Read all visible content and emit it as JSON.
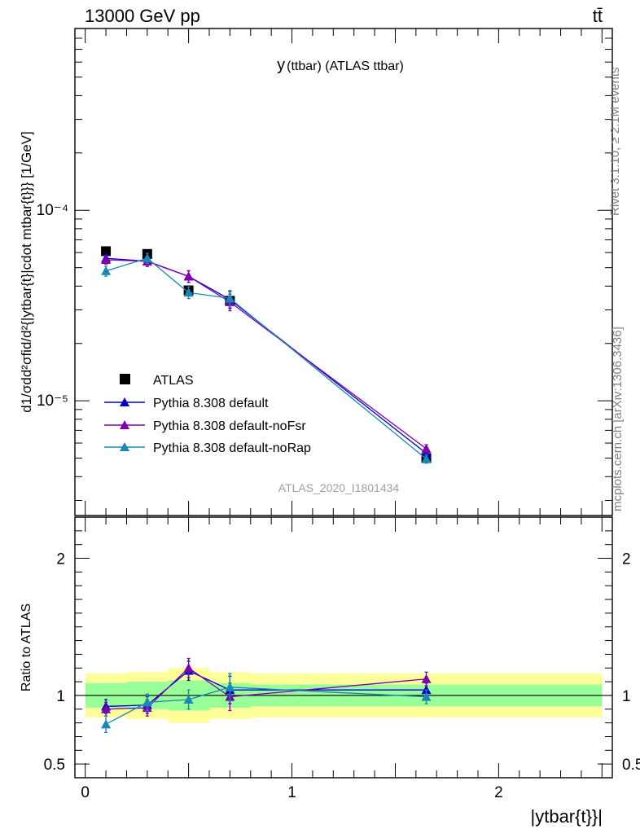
{
  "header": {
    "left": "13000 GeV pp",
    "right": "tt̄"
  },
  "side_labels": {
    "rivet": "Rivet 3.1.10, ≥ 2.1M events",
    "mcplots": "mcplots.cern.ch [arXiv:1306.3436]"
  },
  "watermark": "ATLAS_2020_I1801434",
  "colors": {
    "data": "#000000",
    "default": "#0000cc",
    "noFsr": "#8000b0",
    "noRap": "#1a88b4",
    "band_yellow": "#ffff99",
    "band_green": "#99ff99"
  },
  "chart_data": [
    {
      "type": "scatter",
      "title_main": "y",
      "title_sub": "(ttbar) (ATLAS ttbar)",
      "ylabel": "d1/σdd²σfid/d²{|ytbar{t}|cdot mtbar{t}}} [1/GeV]",
      "yscale": "log",
      "ylim": [
        2.5e-06,
        0.0009
      ],
      "xlim": [
        -0.05,
        2.55
      ],
      "ytick_labels": [
        "10⁻⁴",
        "10⁻⁵"
      ],
      "series": [
        {
          "name": "ATLAS",
          "key": "data",
          "marker": "square",
          "x": [
            0.1,
            0.3,
            0.5,
            0.7,
            1.65
          ],
          "y": [
            6.1e-05,
            5.9e-05,
            3.8e-05,
            3.35e-05,
            5e-06
          ]
        },
        {
          "name": "Pythia 8.308 default",
          "key": "default",
          "marker": "triangle",
          "x": [
            0.1,
            0.3,
            0.5,
            0.7,
            1.65
          ],
          "y": [
            5.6e-05,
            5.4e-05,
            4.5e-05,
            3.4e-05,
            5.3e-06
          ],
          "err": [
            0.05,
            0.06,
            0.07,
            0.1,
            0.05
          ]
        },
        {
          "name": "Pythia 8.308 default-noFsr",
          "key": "noFsr",
          "marker": "triangle",
          "x": [
            0.1,
            0.3,
            0.5,
            0.7,
            1.65
          ],
          "y": [
            5.5e-05,
            5.4e-05,
            4.5e-05,
            3.3e-05,
            5.6e-06
          ],
          "err": [
            0.05,
            0.06,
            0.07,
            0.1,
            0.05
          ]
        },
        {
          "name": "Pythia 8.308 default-noRap",
          "key": "noRap",
          "marker": "triangle",
          "x": [
            0.1,
            0.3,
            0.5,
            0.7,
            1.65
          ],
          "y": [
            4.8e-05,
            5.6e-05,
            3.7e-05,
            3.45e-05,
            4.95e-06
          ],
          "err": [
            0.06,
            0.06,
            0.07,
            0.1,
            0.05
          ]
        }
      ]
    },
    {
      "type": "scatter",
      "ylabel": "Ratio to ATLAS",
      "xlabel": "|ytbar{t}}|",
      "ylim": [
        0.4,
        2.3
      ],
      "xlim": [
        -0.05,
        2.55
      ],
      "ytick_labels": [
        "0.5",
        "1",
        "2"
      ],
      "xtick_labels": [
        "0",
        "1",
        "2"
      ],
      "bands": [
        {
          "x0": 0.0,
          "x1": 0.2,
          "inner": [
            0.91,
            1.09
          ],
          "outer": [
            0.84,
            1.16
          ]
        },
        {
          "x0": 0.2,
          "x1": 0.4,
          "inner": [
            0.9,
            1.1
          ],
          "outer": [
            0.83,
            1.17
          ]
        },
        {
          "x0": 0.4,
          "x1": 0.6,
          "inner": [
            0.89,
            1.11
          ],
          "outer": [
            0.8,
            1.2
          ]
        },
        {
          "x0": 0.6,
          "x1": 0.8,
          "inner": [
            0.91,
            1.09
          ],
          "outer": [
            0.83,
            1.17
          ]
        },
        {
          "x0": 0.8,
          "x1": 2.5,
          "inner": [
            0.92,
            1.08
          ],
          "outer": [
            0.84,
            1.16
          ]
        }
      ],
      "series": [
        {
          "name": "Pythia 8.308 default",
          "key": "default",
          "x": [
            0.1,
            0.3,
            0.5,
            0.7,
            1.65
          ],
          "y": [
            0.92,
            0.93,
            1.18,
            1.04,
            1.04
          ],
          "err": [
            0.05,
            0.06,
            0.07,
            0.1,
            0.05
          ]
        },
        {
          "name": "Pythia 8.308 default-noFsr",
          "key": "noFsr",
          "x": [
            0.1,
            0.3,
            0.5,
            0.7,
            1.65
          ],
          "y": [
            0.9,
            0.91,
            1.2,
            0.99,
            1.12
          ],
          "err": [
            0.05,
            0.06,
            0.07,
            0.1,
            0.05
          ]
        },
        {
          "name": "Pythia 8.308 default-noRap",
          "key": "noRap",
          "x": [
            0.1,
            0.3,
            0.5,
            0.7,
            1.65
          ],
          "y": [
            0.79,
            0.95,
            0.97,
            1.06,
            0.99
          ],
          "err": [
            0.06,
            0.06,
            0.07,
            0.1,
            0.05
          ]
        }
      ]
    }
  ]
}
